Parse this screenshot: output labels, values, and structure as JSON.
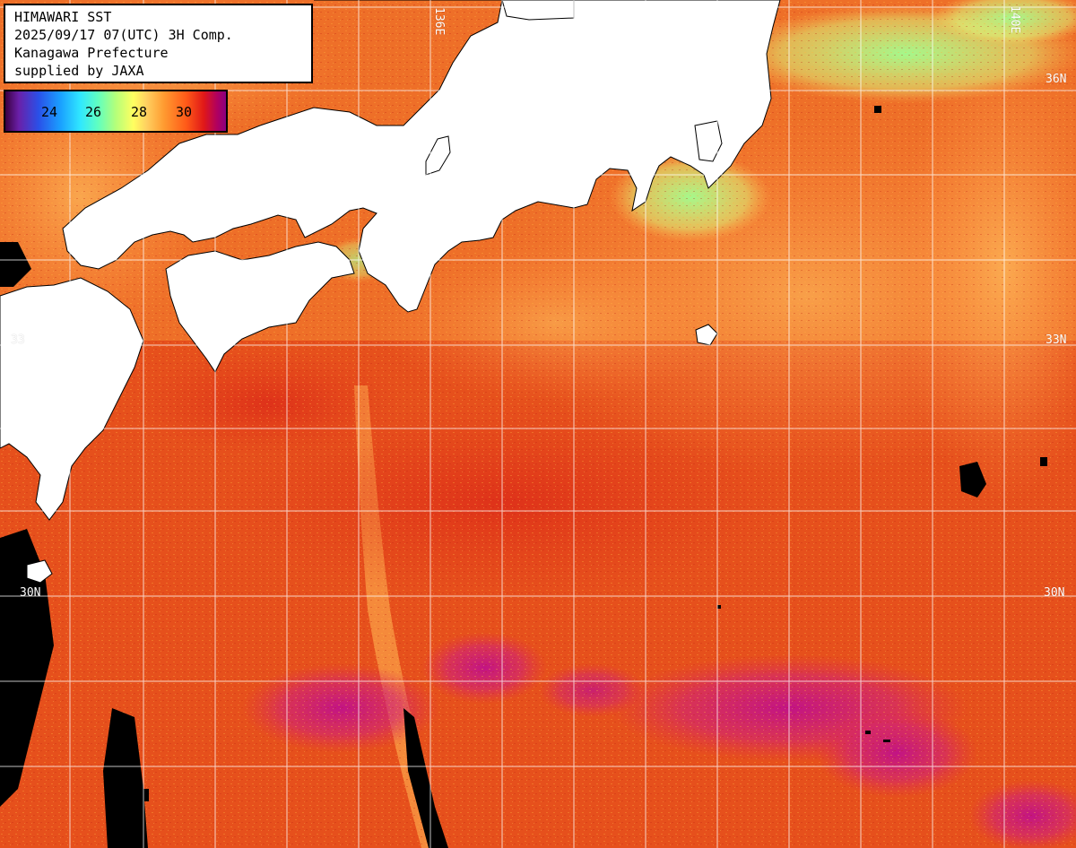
{
  "title": {
    "line1": "HIMAWARI SST",
    "line2": "2025/09/17 07(UTC) 3H Comp.",
    "line3": "Kanagawa Prefecture",
    "line4": "supplied by JAXA"
  },
  "legend": {
    "ticks": [
      "24",
      "26",
      "28",
      "30"
    ],
    "unit": "",
    "colors": {
      "purple_low": "#6a1fa8",
      "blue": "#1aa0ff",
      "cyan": "#30e8ff",
      "green": "#b4ff7a",
      "yellow": "#ffff60",
      "orange": "#ff9a30",
      "red": "#e01818",
      "magenta_high": "#b00060"
    }
  },
  "grid_labels": {
    "lon_136": "136E",
    "lon_140": "140E",
    "lat_33_right": "33N",
    "lat_33_left": "33",
    "lat_30_right": "30N",
    "lat_30_left": "30N",
    "lat_36_right": "36N"
  },
  "map": {
    "land_color": "#ffffff",
    "no_data_color": "#000000",
    "grid_color": "#ffffff",
    "ocean_base_color": "#e2481a"
  }
}
